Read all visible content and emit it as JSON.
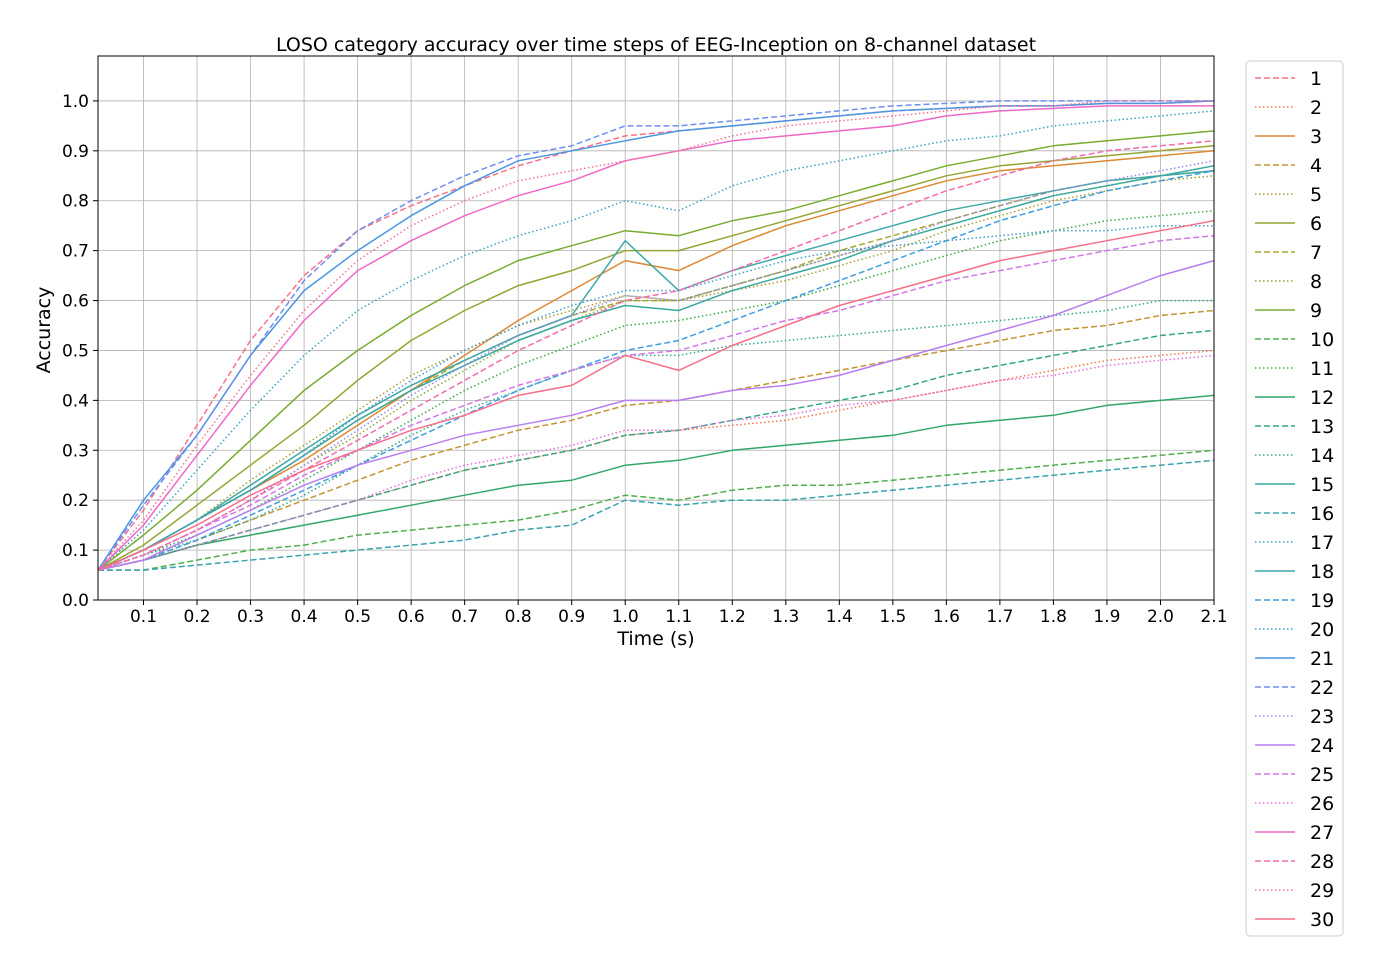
{
  "chart_data": {
    "type": "line",
    "title": "LOSO category accuracy over time steps of EEG-Inception on 8-channel dataset",
    "xlabel": "Time (s)",
    "ylabel": "Accuracy",
    "xlim": [
      0.015,
      2.1
    ],
    "ylim": [
      0.0,
      1.09
    ],
    "grid": true,
    "legend_position": "outside-right",
    "x_ticks": [
      0.1,
      0.2,
      0.3,
      0.4,
      0.5,
      0.6,
      0.7,
      0.8,
      0.9,
      1.0,
      1.1,
      1.2,
      1.3,
      1.4,
      1.5,
      1.6,
      1.7,
      1.8,
      1.9,
      2.0,
      2.1
    ],
    "x_tick_labels": [
      "0.1",
      "0.2",
      "0.3",
      "0.4",
      "0.5",
      "0.6",
      "0.7",
      "0.8",
      "0.9",
      "1.0",
      "1.1",
      "1.2",
      "1.3",
      "1.4",
      "1.5",
      "1.6",
      "1.7",
      "1.8",
      "1.9",
      "2.0",
      "2.1"
    ],
    "y_ticks": [
      0.0,
      0.1,
      0.2,
      0.3,
      0.4,
      0.5,
      0.6,
      0.7,
      0.8,
      0.9,
      1.0
    ],
    "y_tick_labels": [
      "0.0",
      "0.1",
      "0.2",
      "0.3",
      "0.4",
      "0.5",
      "0.6",
      "0.7",
      "0.8",
      "0.9",
      "1.0"
    ],
    "x": [
      0.015,
      0.1,
      0.2,
      0.3,
      0.4,
      0.5,
      0.6,
      0.7,
      0.8,
      0.9,
      1.0,
      1.1,
      1.2,
      1.3,
      1.4,
      1.5,
      1.6,
      1.7,
      1.8,
      1.9,
      2.0,
      2.1
    ],
    "series": [
      {
        "name": "1",
        "color": "#f77189",
        "dash": "dashed",
        "values": [
          0.06,
          0.18,
          0.35,
          0.52,
          0.65,
          0.74,
          0.79,
          0.83,
          0.87,
          0.9,
          0.93,
          0.94,
          0.95,
          0.96,
          0.97,
          0.98,
          0.985,
          0.99,
          0.99,
          0.995,
          0.995,
          1.0
        ]
      },
      {
        "name": "2",
        "color": "#f7754f",
        "dash": "dotted",
        "values": [
          0.06,
          0.08,
          0.11,
          0.14,
          0.17,
          0.2,
          0.23,
          0.26,
          0.28,
          0.3,
          0.33,
          0.34,
          0.35,
          0.36,
          0.38,
          0.4,
          0.42,
          0.44,
          0.46,
          0.48,
          0.49,
          0.5
        ]
      },
      {
        "name": "3",
        "color": "#dc8932",
        "dash": "solid",
        "values": [
          0.06,
          0.1,
          0.16,
          0.22,
          0.28,
          0.35,
          0.42,
          0.49,
          0.56,
          0.62,
          0.68,
          0.66,
          0.71,
          0.75,
          0.78,
          0.81,
          0.84,
          0.86,
          0.87,
          0.88,
          0.89,
          0.9
        ]
      },
      {
        "name": "4",
        "color": "#c39532",
        "dash": "dashed",
        "values": [
          0.06,
          0.08,
          0.12,
          0.16,
          0.2,
          0.24,
          0.28,
          0.31,
          0.34,
          0.36,
          0.39,
          0.4,
          0.42,
          0.44,
          0.46,
          0.48,
          0.5,
          0.52,
          0.54,
          0.55,
          0.57,
          0.58
        ]
      },
      {
        "name": "5",
        "color": "#ae9d31",
        "dash": "dotted",
        "values": [
          0.06,
          0.1,
          0.16,
          0.24,
          0.31,
          0.38,
          0.45,
          0.5,
          0.55,
          0.58,
          0.61,
          0.6,
          0.62,
          0.64,
          0.67,
          0.7,
          0.74,
          0.77,
          0.8,
          0.82,
          0.84,
          0.85
        ]
      },
      {
        "name": "6",
        "color": "#97a431",
        "dash": "solid",
        "values": [
          0.06,
          0.11,
          0.19,
          0.27,
          0.35,
          0.44,
          0.52,
          0.58,
          0.63,
          0.66,
          0.7,
          0.7,
          0.73,
          0.76,
          0.79,
          0.82,
          0.85,
          0.87,
          0.88,
          0.89,
          0.9,
          0.91
        ]
      },
      {
        "name": "7",
        "color": "#a6a82f",
        "dash": "dashed",
        "values": [
          0.06,
          0.1,
          0.16,
          0.22,
          0.29,
          0.36,
          0.42,
          0.48,
          0.53,
          0.57,
          0.6,
          0.6,
          0.63,
          0.66,
          0.7,
          0.73,
          0.76,
          0.79,
          0.82,
          0.84,
          0.85,
          0.86
        ]
      },
      {
        "name": "8",
        "color": "#8cab32",
        "dash": "dotted",
        "values": [
          0.06,
          0.09,
          0.14,
          0.2,
          0.27,
          0.33,
          0.4,
          0.46,
          0.52,
          0.56,
          0.6,
          0.6,
          0.63,
          0.66,
          0.69,
          0.72,
          0.75,
          0.78,
          0.81,
          0.83,
          0.85,
          0.87
        ]
      },
      {
        "name": "9",
        "color": "#77ac31",
        "dash": "solid",
        "values": [
          0.06,
          0.13,
          0.22,
          0.32,
          0.42,
          0.5,
          0.57,
          0.63,
          0.68,
          0.71,
          0.74,
          0.73,
          0.76,
          0.78,
          0.81,
          0.84,
          0.87,
          0.89,
          0.91,
          0.92,
          0.93,
          0.94
        ]
      },
      {
        "name": "10",
        "color": "#4fb04b",
        "dash": "dashed",
        "values": [
          0.06,
          0.06,
          0.08,
          0.1,
          0.11,
          0.13,
          0.14,
          0.15,
          0.16,
          0.18,
          0.21,
          0.2,
          0.22,
          0.23,
          0.23,
          0.24,
          0.25,
          0.26,
          0.27,
          0.28,
          0.29,
          0.3
        ]
      },
      {
        "name": "11",
        "color": "#3ba945",
        "dash": "dotted",
        "values": [
          0.06,
          0.09,
          0.13,
          0.18,
          0.24,
          0.3,
          0.36,
          0.42,
          0.47,
          0.51,
          0.55,
          0.56,
          0.58,
          0.6,
          0.63,
          0.66,
          0.69,
          0.72,
          0.74,
          0.76,
          0.77,
          0.78
        ]
      },
      {
        "name": "12",
        "color": "#33a66a",
        "dash": "solid",
        "values": [
          0.06,
          0.08,
          0.11,
          0.13,
          0.15,
          0.17,
          0.19,
          0.21,
          0.23,
          0.24,
          0.27,
          0.28,
          0.3,
          0.31,
          0.32,
          0.33,
          0.35,
          0.36,
          0.37,
          0.39,
          0.4,
          0.41
        ]
      },
      {
        "name": "13",
        "color": "#35a685",
        "dash": "dashed",
        "values": [
          0.06,
          0.08,
          0.11,
          0.14,
          0.17,
          0.2,
          0.23,
          0.26,
          0.28,
          0.3,
          0.33,
          0.34,
          0.36,
          0.38,
          0.4,
          0.42,
          0.45,
          0.47,
          0.49,
          0.51,
          0.53,
          0.54
        ]
      },
      {
        "name": "14",
        "color": "#36a795",
        "dash": "dotted",
        "values": [
          0.06,
          0.09,
          0.12,
          0.16,
          0.21,
          0.27,
          0.33,
          0.38,
          0.42,
          0.46,
          0.49,
          0.49,
          0.51,
          0.52,
          0.53,
          0.54,
          0.55,
          0.56,
          0.57,
          0.58,
          0.6,
          0.6
        ]
      },
      {
        "name": "15",
        "color": "#38a9a0",
        "dash": "solid",
        "values": [
          0.06,
          0.1,
          0.16,
          0.22,
          0.29,
          0.36,
          0.42,
          0.47,
          0.52,
          0.56,
          0.59,
          0.58,
          0.62,
          0.65,
          0.68,
          0.72,
          0.75,
          0.78,
          0.81,
          0.83,
          0.85,
          0.87
        ]
      },
      {
        "name": "16",
        "color": "#3aa3b0",
        "dash": "dashed",
        "values": [
          0.06,
          0.06,
          0.07,
          0.08,
          0.09,
          0.1,
          0.11,
          0.12,
          0.14,
          0.15,
          0.2,
          0.19,
          0.2,
          0.2,
          0.21,
          0.22,
          0.23,
          0.24,
          0.25,
          0.26,
          0.27,
          0.28
        ]
      },
      {
        "name": "17",
        "color": "#3ba3c2",
        "dash": "dotted",
        "values": [
          0.06,
          0.14,
          0.26,
          0.38,
          0.49,
          0.58,
          0.64,
          0.69,
          0.73,
          0.76,
          0.8,
          0.78,
          0.83,
          0.86,
          0.88,
          0.9,
          0.92,
          0.93,
          0.95,
          0.96,
          0.97,
          0.98
        ]
      },
      {
        "name": "18",
        "color": "#3ea8a8",
        "dash": "solid",
        "values": [
          0.06,
          0.1,
          0.16,
          0.23,
          0.3,
          0.37,
          0.43,
          0.48,
          0.53,
          0.57,
          0.72,
          0.62,
          0.66,
          0.69,
          0.72,
          0.75,
          0.78,
          0.8,
          0.82,
          0.84,
          0.85,
          0.86
        ]
      },
      {
        "name": "19",
        "color": "#3d9ee0",
        "dash": "dashed",
        "values": [
          0.06,
          0.08,
          0.12,
          0.17,
          0.22,
          0.27,
          0.32,
          0.37,
          0.42,
          0.46,
          0.5,
          0.52,
          0.56,
          0.6,
          0.64,
          0.68,
          0.72,
          0.76,
          0.79,
          0.82,
          0.84,
          0.86
        ]
      },
      {
        "name": "20",
        "color": "#3f9fc9",
        "dash": "dotted",
        "values": [
          0.06,
          0.1,
          0.16,
          0.22,
          0.29,
          0.37,
          0.44,
          0.5,
          0.55,
          0.59,
          0.62,
          0.62,
          0.65,
          0.68,
          0.7,
          0.71,
          0.72,
          0.73,
          0.74,
          0.74,
          0.75,
          0.75
        ]
      },
      {
        "name": "21",
        "color": "#4a96e4",
        "dash": "solid",
        "values": [
          0.06,
          0.2,
          0.33,
          0.49,
          0.62,
          0.7,
          0.77,
          0.83,
          0.88,
          0.9,
          0.92,
          0.94,
          0.95,
          0.96,
          0.97,
          0.98,
          0.985,
          0.99,
          0.99,
          0.995,
          0.995,
          1.0
        ]
      },
      {
        "name": "22",
        "color": "#6f8ef0",
        "dash": "dashed",
        "values": [
          0.06,
          0.19,
          0.33,
          0.49,
          0.64,
          0.74,
          0.8,
          0.85,
          0.89,
          0.91,
          0.95,
          0.95,
          0.96,
          0.97,
          0.98,
          0.99,
          0.995,
          1.0,
          1.0,
          1.0,
          1.0,
          1.0
        ]
      },
      {
        "name": "23",
        "color": "#9586f0",
        "dash": "dotted",
        "values": [
          0.06,
          0.09,
          0.14,
          0.2,
          0.27,
          0.34,
          0.41,
          0.47,
          0.53,
          0.57,
          0.61,
          0.6,
          0.63,
          0.66,
          0.69,
          0.72,
          0.76,
          0.79,
          0.82,
          0.84,
          0.86,
          0.88
        ]
      },
      {
        "name": "24",
        "color": "#b87ef0",
        "dash": "solid",
        "values": [
          0.06,
          0.08,
          0.13,
          0.18,
          0.23,
          0.27,
          0.3,
          0.33,
          0.35,
          0.37,
          0.4,
          0.4,
          0.42,
          0.43,
          0.45,
          0.48,
          0.51,
          0.54,
          0.57,
          0.61,
          0.65,
          0.68
        ]
      },
      {
        "name": "25",
        "color": "#d576e8",
        "dash": "dashed",
        "values": [
          0.06,
          0.09,
          0.14,
          0.19,
          0.25,
          0.3,
          0.35,
          0.39,
          0.43,
          0.46,
          0.49,
          0.5,
          0.53,
          0.56,
          0.58,
          0.61,
          0.64,
          0.66,
          0.68,
          0.7,
          0.72,
          0.73
        ]
      },
      {
        "name": "26",
        "color": "#e46fdc",
        "dash": "dotted",
        "values": [
          0.06,
          0.08,
          0.11,
          0.14,
          0.17,
          0.2,
          0.24,
          0.27,
          0.29,
          0.31,
          0.34,
          0.34,
          0.36,
          0.37,
          0.39,
          0.4,
          0.42,
          0.44,
          0.45,
          0.47,
          0.48,
          0.49
        ]
      },
      {
        "name": "27",
        "color": "#f067c8",
        "dash": "solid",
        "values": [
          0.06,
          0.15,
          0.29,
          0.43,
          0.56,
          0.66,
          0.72,
          0.77,
          0.81,
          0.84,
          0.88,
          0.9,
          0.92,
          0.93,
          0.94,
          0.95,
          0.97,
          0.98,
          0.985,
          0.99,
          0.99,
          0.99
        ]
      },
      {
        "name": "28",
        "color": "#f36cae",
        "dash": "dashed",
        "values": [
          0.06,
          0.09,
          0.14,
          0.2,
          0.26,
          0.32,
          0.38,
          0.44,
          0.5,
          0.55,
          0.6,
          0.62,
          0.66,
          0.7,
          0.74,
          0.78,
          0.82,
          0.85,
          0.88,
          0.9,
          0.91,
          0.92
        ]
      },
      {
        "name": "29",
        "color": "#f66f96",
        "dash": "dotted",
        "values": [
          0.06,
          0.16,
          0.31,
          0.45,
          0.58,
          0.68,
          0.75,
          0.8,
          0.84,
          0.86,
          0.88,
          0.9,
          0.93,
          0.95,
          0.96,
          0.97,
          0.98,
          0.99,
          0.99,
          1.0,
          1.0,
          1.0
        ]
      },
      {
        "name": "30",
        "color": "#f76e8a",
        "dash": "solid",
        "values": [
          0.06,
          0.1,
          0.15,
          0.21,
          0.26,
          0.3,
          0.34,
          0.37,
          0.41,
          0.43,
          0.49,
          0.46,
          0.51,
          0.55,
          0.59,
          0.62,
          0.65,
          0.68,
          0.7,
          0.72,
          0.74,
          0.76
        ]
      }
    ]
  }
}
